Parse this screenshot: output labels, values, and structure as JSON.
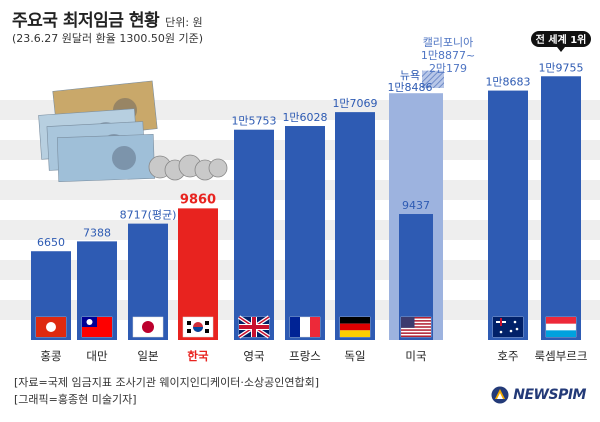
{
  "header": {
    "title": "주요국 최저임금 현황",
    "unit": "단위: 원",
    "subtitle": "(23.6.27 원달러 환율 1300.50원 기준)"
  },
  "footer": {
    "source1": "[자료=국제 임금지표 조사기관 웨이지인디케이터·소상공인연합회]",
    "source2": "[그래픽=홍종현 미술기자]",
    "logo": "NEWSPIM"
  },
  "colors": {
    "bar": "#2e5bb3",
    "bar_highlight": "#e8231f",
    "bar_us_upper": "#9db3df",
    "label_blue": "#2e5bb3",
    "label_red": "#e8231f",
    "stripe_bg": "#eeeeee"
  },
  "chart_data": {
    "type": "bar",
    "categories": [
      "홍콩",
      "대만",
      "일본",
      "한국",
      "영국",
      "프랑스",
      "독일",
      "미국",
      "호주",
      "룩셈부르크"
    ],
    "values": [
      6650,
      7388,
      8717,
      9860,
      15753,
      16028,
      17069,
      9437,
      18683,
      19755
    ],
    "value_labels": [
      "6650",
      "7388",
      "8717(평균)",
      "9860",
      "1만5753",
      "1만6028",
      "1만7069",
      "9437",
      "1만8683",
      "1만9755"
    ],
    "highlight": "한국",
    "flags": [
      "hong-kong",
      "taiwan",
      "japan",
      "korea",
      "uk",
      "france",
      "germany",
      "usa",
      "australia",
      "luxembourg"
    ],
    "us_breakdown": {
      "federal_label": "9437",
      "federal_value": 9437,
      "new_york_label": "뉴욕",
      "new_york_value_label": "1만8486",
      "new_york_value": 18486,
      "california_label": "캘리포니아",
      "california_range_label": "1만8877~2만179",
      "california_range": [
        18877,
        20179
      ]
    },
    "badge": "전 세계 1위",
    "badge_for": "룩셈부르크",
    "ylim": [
      0,
      22000
    ],
    "grid": false,
    "legend": "none"
  }
}
